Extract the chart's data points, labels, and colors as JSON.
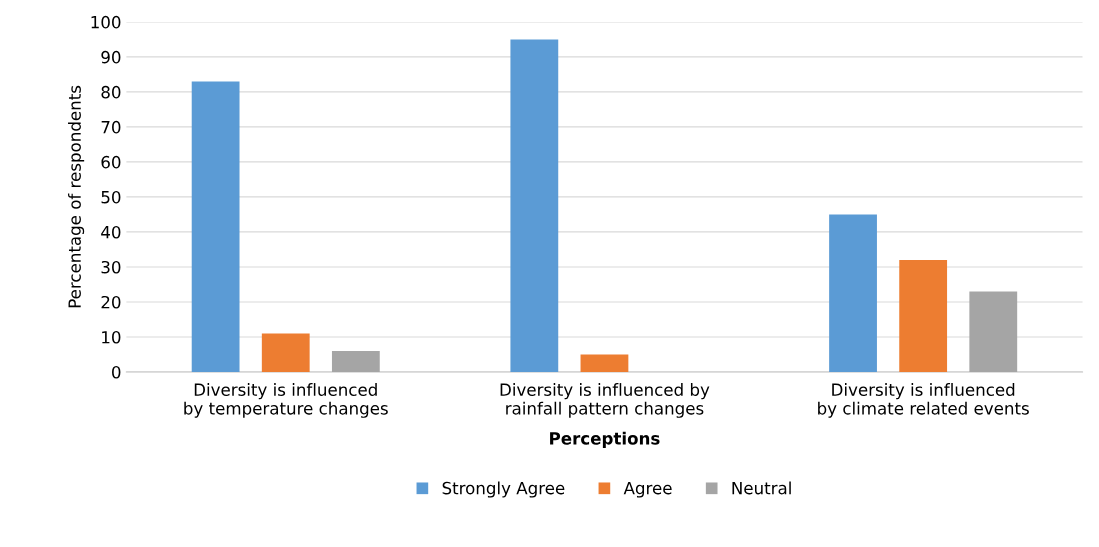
{
  "chart_data": {
    "type": "bar",
    "xlabel": "Perceptions",
    "ylabel": "Percentage of respondents",
    "categories": [
      "Diversity is influenced by temperature changes",
      "Diversity is influenced by rainfall pattern changes",
      "Diversity is influenced by climate related events"
    ],
    "series": [
      {
        "name": "Strongly Agree",
        "color": "#5b9bd5",
        "values": [
          83,
          95,
          45
        ]
      },
      {
        "name": "Agree",
        "color": "#ed7d31",
        "values": [
          11,
          5,
          32
        ]
      },
      {
        "name": "Neutral",
        "color": "#a5a5a5",
        "values": [
          6,
          null,
          23
        ]
      }
    ],
    "ylim": [
      0,
      100
    ],
    "yticks": [
      0,
      10,
      20,
      30,
      40,
      50,
      60,
      70,
      80,
      90,
      100
    ],
    "grid": "y",
    "legend": "bottom"
  }
}
